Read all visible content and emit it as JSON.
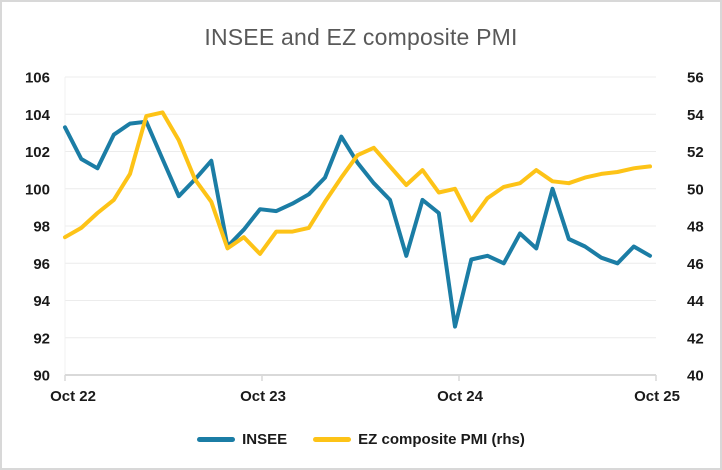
{
  "chart_data": {
    "type": "line",
    "title": "INSEE and EZ composite PMI",
    "grid": "horizontal",
    "legend_position": "bottom",
    "x_tick_labels": [
      "Oct 22",
      "Oct 23",
      "Oct 24",
      "Oct 25"
    ],
    "months": [
      "Oct 22",
      "Nov 22",
      "Dec 22",
      "Jan 23",
      "Feb 23",
      "Mar 23",
      "Apr 23",
      "May 23",
      "Jun 23",
      "Jul 23",
      "Aug 23",
      "Sep 23",
      "Oct 23",
      "Nov 23",
      "Dec 23",
      "Jan 24",
      "Feb 24",
      "Mar 24",
      "Apr 24",
      "May 24",
      "Jun 24",
      "Jul 24",
      "Aug 24",
      "Sep 24",
      "Oct 24",
      "Nov 24",
      "Dec 24",
      "Jan 25",
      "Feb 25",
      "Mar 25",
      "Apr 25",
      "May 25",
      "Jun 25",
      "Jul 25",
      "Aug 25",
      "Sep 25",
      "Oct 25"
    ],
    "left_axis": {
      "min": 90,
      "max": 106,
      "ticks": [
        90,
        92,
        94,
        96,
        98,
        100,
        102,
        104,
        106
      ]
    },
    "right_axis": {
      "min": 40,
      "max": 56,
      "ticks": [
        40,
        42,
        44,
        46,
        48,
        50,
        52,
        54,
        56
      ]
    },
    "series": [
      {
        "name": "INSEE",
        "axis": "left",
        "color": "#1b7da5",
        "values": [
          103.3,
          101.6,
          101.1,
          102.9,
          103.5,
          103.6,
          101.6,
          99.6,
          100.5,
          101.5,
          96.9,
          97.8,
          98.9,
          98.8,
          99.2,
          99.7,
          100.6,
          102.8,
          101.4,
          100.3,
          99.4,
          96.4,
          99.4,
          98.7,
          92.6,
          96.2,
          96.4,
          96.0,
          97.6,
          96.8,
          100.0,
          97.3,
          96.9,
          96.3,
          96.0,
          96.9,
          96.4
        ]
      },
      {
        "name": "EZ composite PMI (rhs)",
        "axis": "right",
        "color": "#fdc317",
        "values": [
          47.4,
          47.9,
          48.7,
          49.4,
          50.8,
          53.9,
          54.1,
          52.6,
          50.5,
          49.3,
          46.8,
          47.4,
          46.5,
          47.7,
          47.7,
          47.9,
          49.3,
          50.6,
          51.8,
          52.2,
          51.2,
          50.2,
          51.0,
          49.8,
          50.0,
          48.3,
          49.5,
          50.1,
          50.3,
          51.0,
          50.4,
          50.3,
          50.6,
          50.8,
          50.9,
          51.1,
          51.2
        ]
      }
    ],
    "colors": {
      "title_text": "#595959",
      "axis_text": "#1a1a1a",
      "gridline": "#ececec",
      "axis_line": "#d9d9d9",
      "frame_border": "#d8d8d8",
      "background": "#ffffff"
    }
  }
}
